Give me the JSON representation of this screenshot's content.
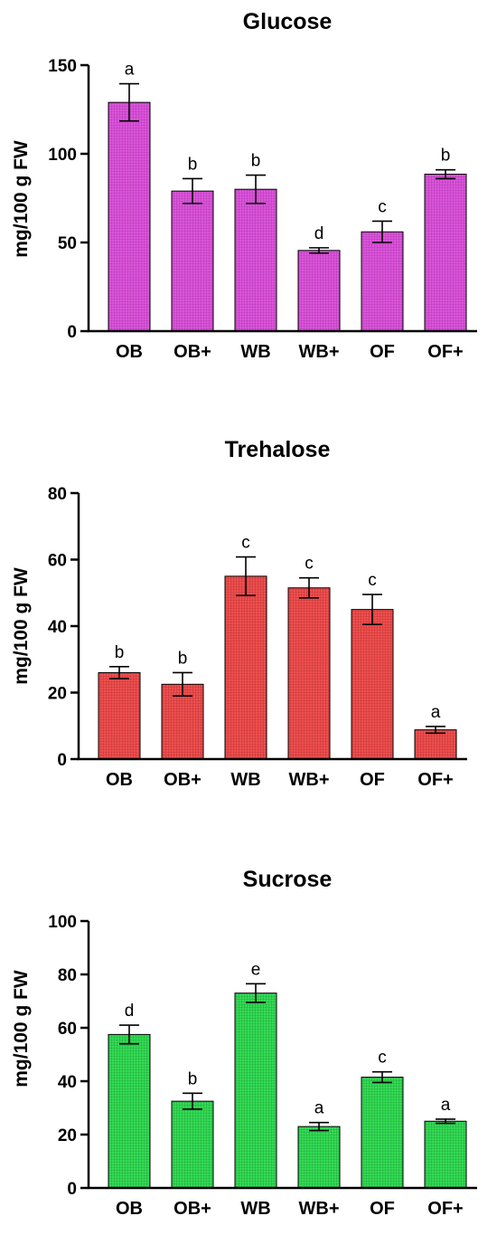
{
  "colors": {
    "glucose": "#dd55dd",
    "trehalose": "#f05050",
    "sucrose": "#33dd55"
  },
  "chart_data": [
    {
      "type": "bar",
      "title": "Glucose",
      "ylabel": "mg/100 g FW",
      "categories": [
        "OB",
        "OB+",
        "WB",
        "WB+",
        "OF",
        "OF+"
      ],
      "values": [
        129,
        79,
        80,
        45.5,
        56,
        88.5
      ],
      "errors": [
        10.5,
        7,
        8,
        1.5,
        6,
        2.5
      ],
      "letters": [
        "a",
        "b",
        "b",
        "d",
        "c",
        "b"
      ],
      "ylim": [
        0,
        150
      ],
      "yticks": [
        0,
        50,
        100,
        150
      ],
      "color": "#dd55dd"
    },
    {
      "type": "bar",
      "title": "Trehalose",
      "ylabel": "mg/100 g FW",
      "categories": [
        "OB",
        "OB+",
        "WB",
        "WB+",
        "OF",
        "OF+"
      ],
      "values": [
        26,
        22.5,
        55,
        51.5,
        45,
        8.8
      ],
      "errors": [
        1.8,
        3.5,
        5.8,
        3,
        4.5,
        1
      ],
      "letters": [
        "b",
        "b",
        "c",
        "c",
        "c",
        "a"
      ],
      "ylim": [
        0,
        80
      ],
      "yticks": [
        0,
        20,
        40,
        60,
        80
      ],
      "color": "#f05050"
    },
    {
      "type": "bar",
      "title": "Sucrose",
      "ylabel": "mg/100 g FW",
      "categories": [
        "OB",
        "OB+",
        "WB",
        "WB+",
        "OF",
        "OF+"
      ],
      "values": [
        57.5,
        32.5,
        73,
        23,
        41.5,
        25
      ],
      "errors": [
        3.5,
        3,
        3.5,
        1.5,
        2,
        0.8
      ],
      "letters": [
        "d",
        "b",
        "e",
        "a",
        "c",
        "a"
      ],
      "ylim": [
        0,
        100
      ],
      "yticks": [
        0,
        20,
        40,
        60,
        80,
        100
      ],
      "color": "#33dd55"
    }
  ]
}
